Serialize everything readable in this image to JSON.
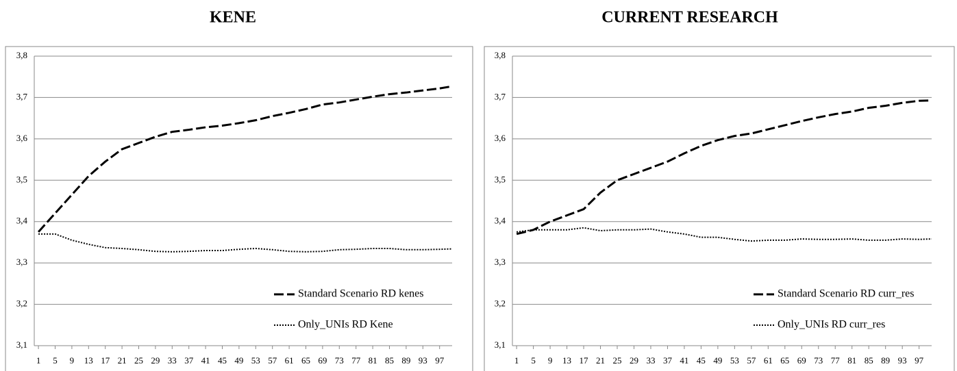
{
  "chart_data": [
    {
      "type": "line",
      "title": "KENE",
      "x": [
        1,
        5,
        9,
        13,
        17,
        21,
        25,
        29,
        33,
        37,
        41,
        45,
        49,
        53,
        57,
        61,
        65,
        69,
        73,
        77,
        81,
        85,
        89,
        93,
        97,
        100
      ],
      "xlim": [
        0,
        100
      ],
      "xticks": [
        1,
        5,
        9,
        13,
        17,
        21,
        25,
        29,
        33,
        37,
        41,
        45,
        49,
        53,
        57,
        61,
        65,
        69,
        73,
        77,
        81,
        85,
        89,
        93,
        97
      ],
      "ylim": [
        3.1,
        3.8
      ],
      "yticks": [
        {
          "value": 3.1,
          "label": "3,1"
        },
        {
          "value": 3.2,
          "label": "3,2"
        },
        {
          "value": 3.3,
          "label": "3,3"
        },
        {
          "value": 3.4,
          "label": "3,4"
        },
        {
          "value": 3.5,
          "label": "3,5"
        },
        {
          "value": 3.6,
          "label": "3,6"
        },
        {
          "value": 3.7,
          "label": "3,7"
        },
        {
          "value": 3.8,
          "label": "3,8"
        }
      ],
      "grid": true,
      "legend": "lower right",
      "series": [
        {
          "name": "Standard Scenario RD kenes",
          "color": "#000000",
          "dash": "dashed",
          "values": [
            3.375,
            3.42,
            3.465,
            3.51,
            3.545,
            3.575,
            3.59,
            3.605,
            3.617,
            3.622,
            3.628,
            3.632,
            3.638,
            3.645,
            3.655,
            3.663,
            3.672,
            3.683,
            3.688,
            3.695,
            3.702,
            3.708,
            3.712,
            3.717,
            3.722,
            3.727
          ]
        },
        {
          "name": "Only_UNIs RD Kene",
          "color": "#000000",
          "dash": "dotted",
          "values": [
            3.37,
            3.37,
            3.355,
            3.345,
            3.337,
            3.335,
            3.332,
            3.328,
            3.327,
            3.328,
            3.33,
            3.33,
            3.333,
            3.335,
            3.332,
            3.328,
            3.327,
            3.328,
            3.332,
            3.333,
            3.335,
            3.335,
            3.332,
            3.332,
            3.333,
            3.334
          ]
        }
      ]
    },
    {
      "type": "line",
      "title": "CURRENT RESEARCH",
      "x": [
        1,
        5,
        9,
        13,
        17,
        21,
        25,
        29,
        33,
        37,
        41,
        45,
        49,
        53,
        57,
        61,
        65,
        69,
        73,
        77,
        81,
        85,
        89,
        93,
        97,
        100
      ],
      "xlim": [
        0,
        100
      ],
      "xticks": [
        1,
        5,
        9,
        13,
        17,
        21,
        25,
        29,
        33,
        37,
        41,
        45,
        49,
        53,
        57,
        61,
        65,
        69,
        73,
        77,
        81,
        85,
        89,
        93,
        97
      ],
      "ylim": [
        3.1,
        3.8
      ],
      "yticks": [
        {
          "value": 3.1,
          "label": "3,1"
        },
        {
          "value": 3.2,
          "label": "3,2"
        },
        {
          "value": 3.3,
          "label": "3,3"
        },
        {
          "value": 3.4,
          "label": "3,4"
        },
        {
          "value": 3.5,
          "label": "3,5"
        },
        {
          "value": 3.6,
          "label": "3,6"
        },
        {
          "value": 3.7,
          "label": "3,7"
        },
        {
          "value": 3.8,
          "label": "3,8"
        }
      ],
      "grid": true,
      "legend": "lower right",
      "series": [
        {
          "name": "Standard Scenario RD curr_res",
          "color": "#000000",
          "dash": "dashed",
          "values": [
            3.37,
            3.38,
            3.4,
            3.415,
            3.43,
            3.47,
            3.5,
            3.515,
            3.53,
            3.545,
            3.565,
            3.583,
            3.597,
            3.607,
            3.613,
            3.623,
            3.633,
            3.643,
            3.652,
            3.66,
            3.666,
            3.675,
            3.68,
            3.687,
            3.692,
            3.693
          ]
        },
        {
          "name": "Only_UNIs RD curr_res",
          "color": "#000000",
          "dash": "dotted",
          "values": [
            3.375,
            3.38,
            3.38,
            3.38,
            3.385,
            3.378,
            3.38,
            3.38,
            3.382,
            3.375,
            3.37,
            3.362,
            3.362,
            3.357,
            3.353,
            3.355,
            3.355,
            3.358,
            3.357,
            3.357,
            3.358,
            3.355,
            3.355,
            3.358,
            3.357,
            3.358
          ]
        }
      ]
    }
  ]
}
